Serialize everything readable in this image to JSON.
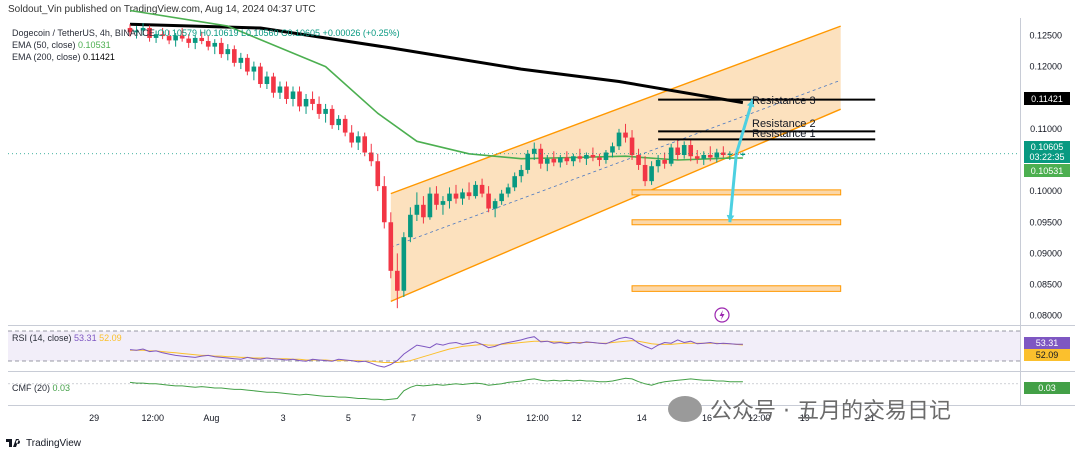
{
  "header": {
    "publisher": "Soldout_Vin published on TradingView.com, Aug 14, 2024 04:37 UTC"
  },
  "legend": {
    "symbol_line": "Dogecoin / TetherUS, 4h, BINANCE",
    "ohlc_text": "O0.10579 H0.10619 L0.10560 C0.10605 +0.00026 (+0.25%)",
    "ema50_label": "EMA (50, close)",
    "ema50_value": "0.10531",
    "ema200_label": "EMA (200, close)",
    "ema200_value": "0.11421"
  },
  "price_axis": {
    "ticks": [
      "0.12500",
      "0.12000",
      "0.11500",
      "0.11000",
      "0.10500",
      "0.10000",
      "0.09500",
      "0.09000",
      "0.08500",
      "0.08000"
    ],
    "last_price": "0.10605",
    "countdown": "03:22:35",
    "ema50_tag": "0.10531",
    "ema200_tag": "0.11421"
  },
  "time_axis": {
    "ticks": [
      {
        "label": "29",
        "i": 4
      },
      {
        "label": "12:00",
        "i": 13
      },
      {
        "label": "Aug",
        "i": 22
      },
      {
        "label": "3",
        "i": 33
      },
      {
        "label": "5",
        "i": 43
      },
      {
        "label": "7",
        "i": 53
      },
      {
        "label": "9",
        "i": 63
      },
      {
        "label": "12:00",
        "i": 72
      },
      {
        "label": "12",
        "i": 78
      },
      {
        "label": "14",
        "i": 88
      },
      {
        "label": "16",
        "i": 98
      },
      {
        "label": "12:00",
        "i": 106
      },
      {
        "label": "19",
        "i": 113
      },
      {
        "label": "21",
        "i": 123
      }
    ]
  },
  "annotations": {
    "resistance_1": "Resistance 1",
    "resistance_2": "Resistance 2",
    "resistance_3": "Resistance 3"
  },
  "rsi": {
    "label": "RSI (14, close)",
    "value": "53.31",
    "ma_value": "52.09",
    "ma_tag": "52.09"
  },
  "cmf": {
    "label": "CMF (20)",
    "value": "0.03"
  },
  "footer": {
    "brand": "TradingView"
  },
  "watermark": {
    "text": "公众号 · 五月的交易日记"
  },
  "colors": {
    "up": "#089981",
    "down": "#f23645",
    "ema50": "#4caf50",
    "ema200": "#000000",
    "channel_fill": "#fbd7a8",
    "channel_line": "#ff9800",
    "arrow": "#4dd0e1",
    "rsi": "#7e57c2",
    "rsi_ma": "#fbc02d",
    "cmf": "#43a047"
  },
  "chart_data": {
    "type": "candlestick",
    "interval": "4h",
    "ylim": [
      0.0785,
      0.1278
    ],
    "candles": [
      [
        0.1262,
        0.1268,
        0.1248,
        0.1255
      ],
      [
        0.1255,
        0.1265,
        0.1245,
        0.1258
      ],
      [
        0.1258,
        0.127,
        0.125,
        0.1262
      ],
      [
        0.1262,
        0.1266,
        0.124,
        0.1246
      ],
      [
        0.1246,
        0.1258,
        0.1238,
        0.1252
      ],
      [
        0.1252,
        0.1262,
        0.1244,
        0.1249
      ],
      [
        0.1249,
        0.1258,
        0.1236,
        0.1242
      ],
      [
        0.1242,
        0.1254,
        0.1232,
        0.125
      ],
      [
        0.125,
        0.1262,
        0.124,
        0.1245
      ],
      [
        0.1245,
        0.1252,
        0.123,
        0.1238
      ],
      [
        0.1238,
        0.125,
        0.1228,
        0.1246
      ],
      [
        0.1246,
        0.1256,
        0.1236,
        0.1241
      ],
      [
        0.1241,
        0.125,
        0.1226,
        0.1232
      ],
      [
        0.1232,
        0.1244,
        0.122,
        0.1238
      ],
      [
        0.1238,
        0.1246,
        0.1214,
        0.122
      ],
      [
        0.122,
        0.1236,
        0.121,
        0.1228
      ],
      [
        0.1228,
        0.1234,
        0.12,
        0.1206
      ],
      [
        0.1206,
        0.1222,
        0.1196,
        0.1214
      ],
      [
        0.1214,
        0.122,
        0.1186,
        0.1192
      ],
      [
        0.1192,
        0.1208,
        0.1178,
        0.12
      ],
      [
        0.12,
        0.1206,
        0.1166,
        0.1172
      ],
      [
        0.1172,
        0.1192,
        0.1164,
        0.1184
      ],
      [
        0.1184,
        0.119,
        0.115,
        0.1158
      ],
      [
        0.1158,
        0.1176,
        0.1148,
        0.1168
      ],
      [
        0.1168,
        0.1176,
        0.114,
        0.1148
      ],
      [
        0.1148,
        0.1168,
        0.1136,
        0.116
      ],
      [
        0.116,
        0.1168,
        0.1128,
        0.1136
      ],
      [
        0.1136,
        0.1156,
        0.1124,
        0.1148
      ],
      [
        0.1148,
        0.116,
        0.113,
        0.114
      ],
      [
        0.114,
        0.1152,
        0.1116,
        0.1124
      ],
      [
        0.1124,
        0.114,
        0.111,
        0.1132
      ],
      [
        0.1132,
        0.1138,
        0.11,
        0.1106
      ],
      [
        0.1106,
        0.1122,
        0.1098,
        0.1116
      ],
      [
        0.1116,
        0.1122,
        0.1088,
        0.1094
      ],
      [
        0.1094,
        0.1106,
        0.107,
        0.1078
      ],
      [
        0.1078,
        0.1096,
        0.1066,
        0.1088
      ],
      [
        0.1088,
        0.1094,
        0.1056,
        0.1062
      ],
      [
        0.1062,
        0.1076,
        0.104,
        0.1048
      ],
      [
        0.1048,
        0.106,
        0.1,
        0.1008
      ],
      [
        0.1008,
        0.1024,
        0.094,
        0.095
      ],
      [
        0.095,
        0.0966,
        0.086,
        0.0872
      ],
      [
        0.0872,
        0.09,
        0.0812,
        0.084
      ],
      [
        0.084,
        0.0934,
        0.083,
        0.0926
      ],
      [
        0.0926,
        0.0974,
        0.0918,
        0.0962
      ],
      [
        0.0962,
        0.0998,
        0.0952,
        0.0978
      ],
      [
        0.0978,
        0.0992,
        0.0948,
        0.0958
      ],
      [
        0.0958,
        0.1006,
        0.0954,
        0.0996
      ],
      [
        0.0996,
        0.1008,
        0.097,
        0.0978
      ],
      [
        0.0978,
        0.0992,
        0.0962,
        0.0984
      ],
      [
        0.0984,
        0.1006,
        0.0972,
        0.0996
      ],
      [
        0.0996,
        0.101,
        0.098,
        0.0988
      ],
      [
        0.0988,
        0.1004,
        0.0978,
        0.0998
      ],
      [
        0.0998,
        0.1014,
        0.0986,
        0.0992
      ],
      [
        0.0992,
        0.1016,
        0.0988,
        0.101
      ],
      [
        0.101,
        0.102,
        0.099,
        0.0996
      ],
      [
        0.0996,
        0.1008,
        0.0966,
        0.0972
      ],
      [
        0.0972,
        0.0988,
        0.0958,
        0.0984
      ],
      [
        0.0984,
        0.1002,
        0.0978,
        0.0996
      ],
      [
        0.0996,
        0.1012,
        0.099,
        0.1006
      ],
      [
        0.1006,
        0.103,
        0.1,
        0.1024
      ],
      [
        0.1024,
        0.1042,
        0.1014,
        0.1034
      ],
      [
        0.1034,
        0.1066,
        0.1028,
        0.106
      ],
      [
        0.106,
        0.1078,
        0.105,
        0.1068
      ],
      [
        0.1068,
        0.1076,
        0.1036,
        0.1044
      ],
      [
        0.1044,
        0.1058,
        0.1032,
        0.1052
      ],
      [
        0.1052,
        0.1064,
        0.104,
        0.1046
      ],
      [
        0.1046,
        0.1058,
        0.1038,
        0.1054
      ],
      [
        0.1054,
        0.1064,
        0.1042,
        0.1048
      ],
      [
        0.1048,
        0.106,
        0.104,
        0.1056
      ],
      [
        0.1056,
        0.1068,
        0.1046,
        0.1052
      ],
      [
        0.1052,
        0.1062,
        0.1042,
        0.1058
      ],
      [
        0.1058,
        0.107,
        0.1048,
        0.1054
      ],
      [
        0.1054,
        0.106,
        0.104,
        0.105
      ],
      [
        0.105,
        0.1066,
        0.1044,
        0.1062
      ],
      [
        0.1062,
        0.1078,
        0.1054,
        0.1072
      ],
      [
        0.1072,
        0.11,
        0.1066,
        0.1094
      ],
      [
        0.1094,
        0.1108,
        0.1078,
        0.1086
      ],
      [
        0.1086,
        0.1098,
        0.105,
        0.1058
      ],
      [
        0.1058,
        0.1068,
        0.1034,
        0.1042
      ],
      [
        0.1042,
        0.1056,
        0.1008,
        0.1016
      ],
      [
        0.1016,
        0.1048,
        0.101,
        0.104
      ],
      [
        0.104,
        0.1058,
        0.103,
        0.105
      ],
      [
        0.105,
        0.1062,
        0.1036,
        0.1044
      ],
      [
        0.1044,
        0.1076,
        0.104,
        0.107
      ],
      [
        0.107,
        0.1084,
        0.105,
        0.1058
      ],
      [
        0.1058,
        0.108,
        0.1052,
        0.1074
      ],
      [
        0.1074,
        0.1082,
        0.1048,
        0.1056
      ],
      [
        0.1056,
        0.1066,
        0.1044,
        0.1052
      ],
      [
        0.1052,
        0.1064,
        0.1042,
        0.1058
      ],
      [
        0.1058,
        0.1072,
        0.1048,
        0.1054
      ],
      [
        0.1054,
        0.1068,
        0.1046,
        0.1062
      ],
      [
        0.1062,
        0.1072,
        0.1054,
        0.1058
      ],
      [
        0.1058,
        0.1064,
        0.105,
        0.106
      ],
      [
        0.106,
        0.1064,
        0.1054,
        0.1058
      ],
      [
        0.1058,
        0.1062,
        0.1056,
        0.106
      ]
    ],
    "ema50": [
      [
        0,
        0.129
      ],
      [
        15,
        0.1265
      ],
      [
        30,
        0.12
      ],
      [
        38,
        0.1125
      ],
      [
        44,
        0.108
      ],
      [
        52,
        0.106
      ],
      [
        60,
        0.1052
      ],
      [
        68,
        0.1054
      ],
      [
        76,
        0.1056
      ],
      [
        84,
        0.105
      ],
      [
        92,
        0.1053
      ],
      [
        94,
        0.10531
      ]
    ],
    "ema200": [
      [
        0,
        0.1268
      ],
      [
        20,
        0.1262
      ],
      [
        40,
        0.123
      ],
      [
        60,
        0.1196
      ],
      [
        75,
        0.1176
      ],
      [
        94,
        0.11421
      ]
    ],
    "channel": {
      "lower": [
        [
          40,
          0.0823
        ],
        [
          93,
          0.106
        ]
      ],
      "upper": [
        [
          40,
          0.0996
        ],
        [
          109,
          0.1265
        ]
      ],
      "mid": [
        [
          40,
          0.091
        ],
        [
          109,
          0.1178
        ]
      ]
    },
    "resistances": [
      {
        "label": "Resistance 1",
        "price": 0.1083,
        "from": 81,
        "to": 110
      },
      {
        "label": "Resistance 2",
        "price": 0.1096,
        "from": 81,
        "to": 110
      },
      {
        "label": "Resistance 3",
        "price": 0.1147,
        "from": 81,
        "to": 110
      }
    ],
    "support_zones": [
      [
        77,
        109,
        0.1002,
        0.0995
      ],
      [
        77,
        109,
        0.0954,
        0.0947
      ],
      [
        77,
        109,
        0.0848,
        0.0839
      ]
    ],
    "arrows": [
      {
        "from": [
          93,
          0.106
        ],
        "to": [
          95.5,
          0.1147
        ]
      },
      {
        "from": [
          93,
          0.106
        ],
        "to": [
          92,
          0.095
        ]
      }
    ],
    "rsi_series": [
      45,
      44,
      46,
      42,
      43,
      40,
      38,
      36,
      35,
      34,
      33,
      35,
      36,
      34,
      33,
      32,
      31,
      30,
      33,
      31,
      30,
      32,
      31,
      30,
      29,
      30,
      28,
      27,
      30,
      29,
      28,
      27,
      30,
      29,
      28,
      26,
      27,
      24,
      20,
      18,
      22,
      28,
      38,
      45,
      52,
      50,
      48,
      54,
      52,
      55,
      56,
      53,
      55,
      57,
      53,
      48,
      50,
      54,
      56,
      58,
      60,
      63,
      65,
      57,
      58,
      55,
      56,
      54,
      56,
      55,
      57,
      56,
      55,
      54,
      58,
      62,
      64,
      62,
      55,
      50,
      46,
      52,
      56,
      55,
      60,
      56,
      58,
      54,
      55,
      56,
      54,
      55,
      54,
      53.3,
      53.3
    ],
    "rsi_ma_series": [
      44,
      44,
      44,
      43,
      43,
      42,
      41,
      40,
      39,
      38,
      37,
      36,
      36,
      35,
      35,
      34,
      34,
      33,
      33,
      32,
      32,
      32,
      31,
      31,
      31,
      30,
      30,
      29,
      29,
      29,
      29,
      28,
      28,
      28,
      28,
      28,
      27,
      27,
      26,
      25,
      25,
      25,
      26,
      28,
      31,
      34,
      37,
      40,
      43,
      46,
      48,
      50,
      51,
      52,
      53,
      52,
      52,
      53,
      54,
      55,
      56,
      57,
      58,
      58,
      58,
      57,
      57,
      56,
      56,
      56,
      56,
      56,
      55,
      55,
      56,
      57,
      58,
      59,
      58,
      56,
      54,
      53,
      53,
      53,
      54,
      55,
      55,
      55,
      55,
      55,
      55,
      54,
      54,
      53,
      52.1
    ],
    "cmf_series": [
      0.02,
      0.01,
      0.01,
      0.0,
      0.0,
      -0.01,
      -0.02,
      -0.03,
      -0.03,
      -0.04,
      -0.05,
      -0.04,
      -0.05,
      -0.06,
      -0.06,
      -0.07,
      -0.08,
      -0.08,
      -0.09,
      -0.1,
      -0.11,
      -0.12,
      -0.12,
      -0.13,
      -0.14,
      -0.15,
      -0.16,
      -0.15,
      -0.16,
      -0.17,
      -0.18,
      -0.18,
      -0.19,
      -0.19,
      -0.2,
      -0.21,
      -0.21,
      -0.22,
      -0.22,
      -0.23,
      -0.22,
      -0.21,
      -0.1,
      -0.05,
      -0.02,
      -0.03,
      -0.02,
      -0.01,
      -0.02,
      -0.01,
      0.0,
      -0.01,
      0.0,
      0.01,
      0.0,
      -0.02,
      -0.01,
      0.0,
      0.02,
      0.03,
      0.04,
      0.06,
      0.07,
      0.05,
      0.04,
      0.05,
      0.04,
      0.05,
      0.04,
      0.05,
      0.04,
      0.04,
      0.03,
      0.03,
      0.04,
      0.06,
      0.08,
      0.07,
      0.03,
      0.0,
      -0.02,
      0.01,
      0.03,
      0.04,
      0.05,
      0.06,
      0.07,
      0.06,
      0.05,
      0.05,
      0.04,
      0.04,
      0.03,
      0.03,
      0.03
    ],
    "rsi_ylim": [
      15,
      80
    ],
    "cmf_ylim": [
      -0.26,
      0.14
    ]
  }
}
